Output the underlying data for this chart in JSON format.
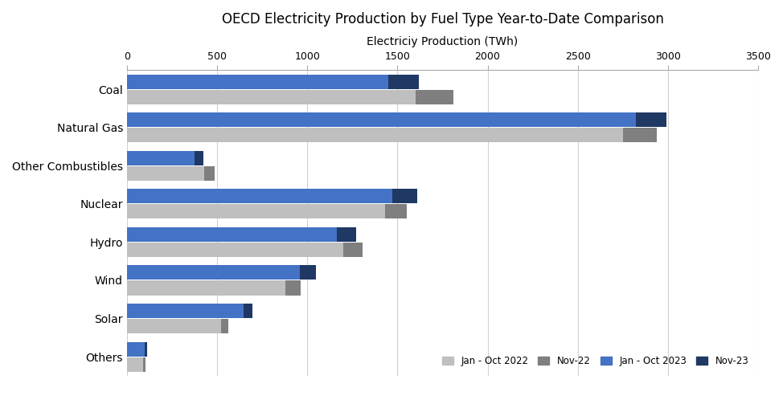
{
  "title": "OECD Electricity Production by Fuel Type Year-to-Date Comparison",
  "xlabel": "Electriciy Production (TWh)",
  "categories": [
    "Coal",
    "Natural Gas",
    "Other Combustibles",
    "Nuclear",
    "Hydro",
    "Wind",
    "Solar",
    "Others"
  ],
  "series": {
    "Jan - Oct 2022": [
      1600,
      2750,
      430,
      1430,
      1200,
      880,
      520,
      90
    ],
    "Nov-22": [
      210,
      190,
      55,
      120,
      105,
      85,
      42,
      12
    ],
    "Jan - Oct 2023": [
      1450,
      2820,
      375,
      1470,
      1165,
      960,
      645,
      100
    ],
    "Nov-23": [
      170,
      170,
      50,
      140,
      105,
      90,
      52,
      12
    ]
  },
  "colors": {
    "Jan - Oct 2022": "#bfbfbf",
    "Nov-22": "#7f7f7f",
    "Jan - Oct 2023": "#4472c4",
    "Nov-23": "#1f3864"
  },
  "xlim": [
    0,
    3500
  ],
  "xticks": [
    0,
    500,
    1000,
    1500,
    2000,
    2500,
    3000,
    3500
  ],
  "bar_height": 0.38,
  "background_color": "#ffffff",
  "title_fontsize": 12,
  "legend_loc": "lower right"
}
